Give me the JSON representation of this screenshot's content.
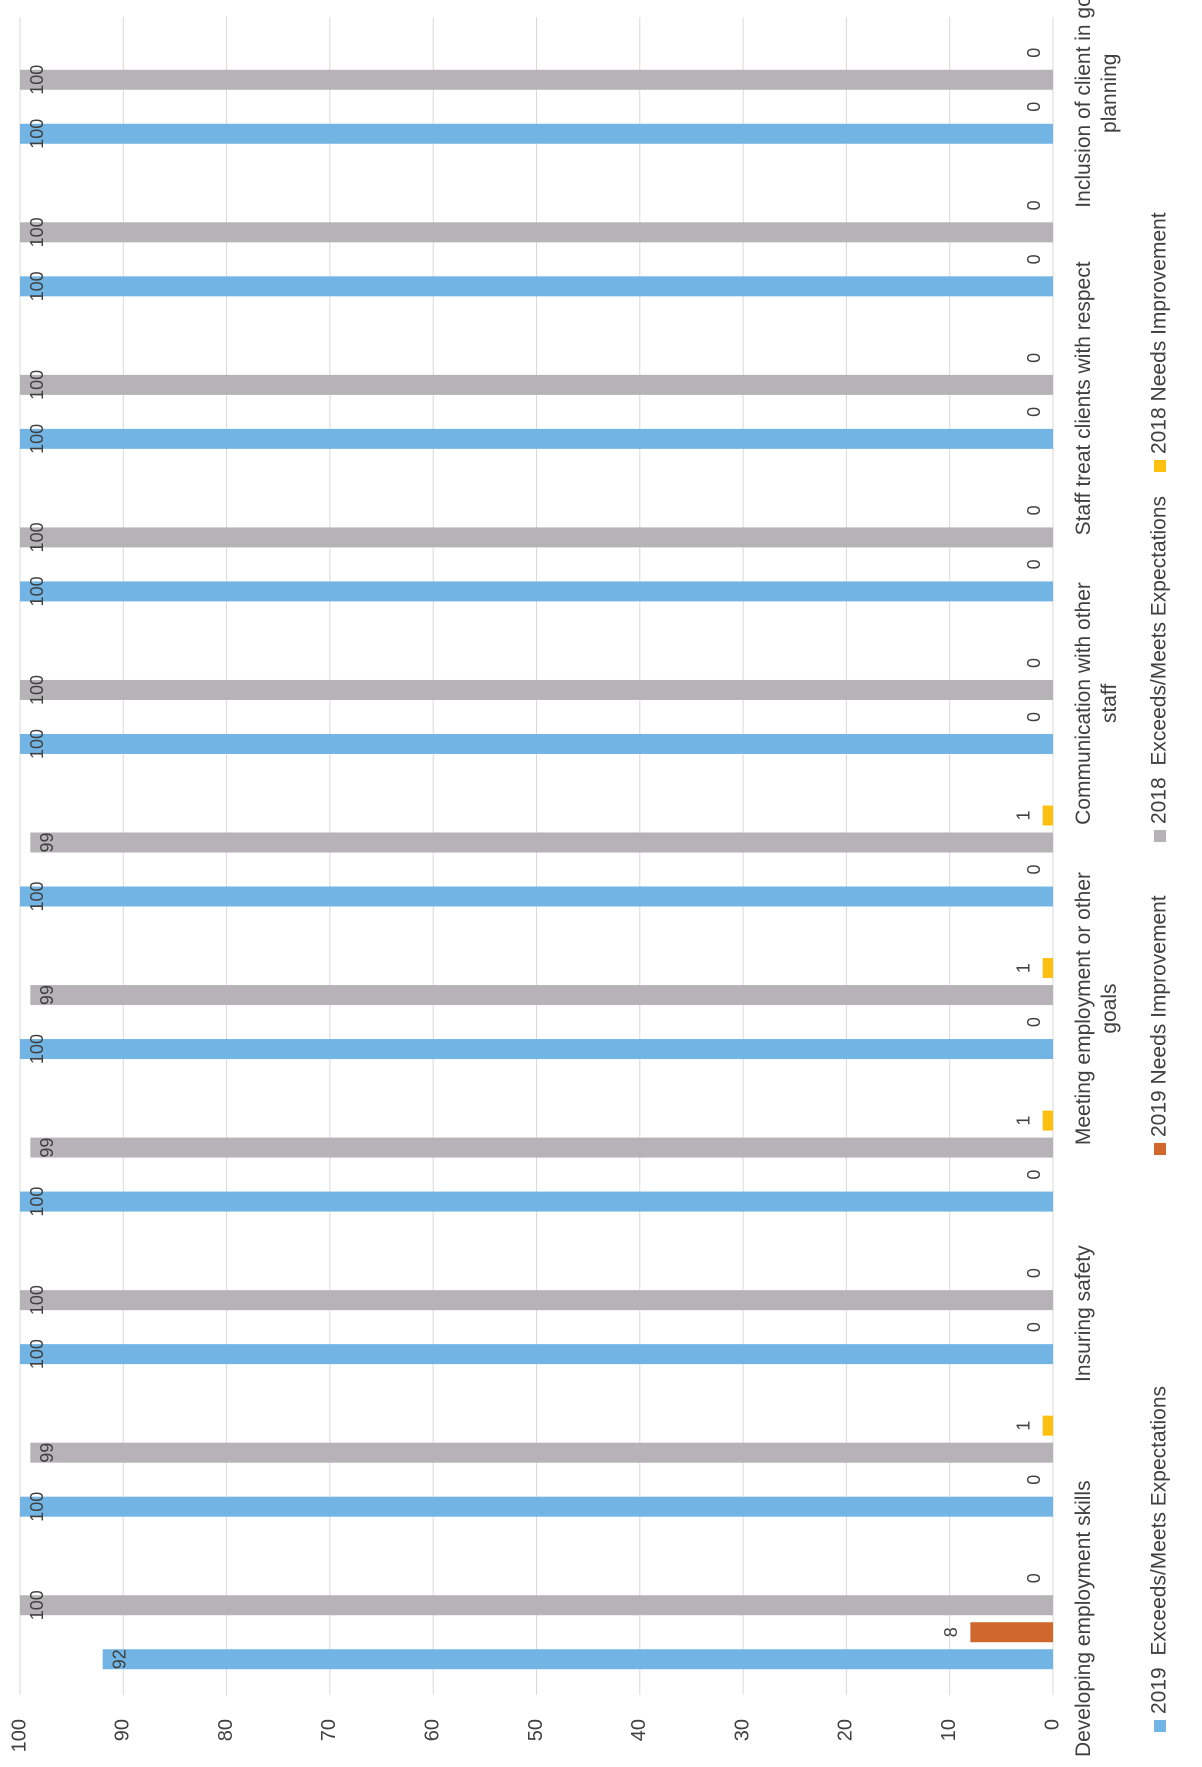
{
  "chart_data": {
    "type": "bar",
    "categories": [
      "Developing employment skills",
      null,
      "Insuring safety",
      null,
      "Meeting employment or other goals",
      null,
      "Communication with other staff",
      null,
      "Staff treat clients with respect",
      null,
      "Inclusion of client in goal planning"
    ],
    "series": [
      {
        "name": "2019  Exceeds/Meets Expectations",
        "color": "#72b5e5",
        "values": [
          92,
          100,
          100,
          100,
          100,
          100,
          100,
          100,
          100,
          100,
          100
        ]
      },
      {
        "name": "2019 Needs Improvement",
        "color": "#d0672c",
        "values": [
          8,
          0,
          0,
          0,
          0,
          0,
          0,
          0,
          0,
          0,
          0
        ]
      },
      {
        "name": "2018  Exceeds/Meets Expectations",
        "color": "#b6b2b7",
        "values": [
          100,
          99,
          100,
          99,
          99,
          99,
          100,
          100,
          100,
          100,
          100
        ]
      },
      {
        "name": "2018 Needs Improvement",
        "color": "#fdc010",
        "values": [
          0,
          1,
          0,
          1,
          1,
          1,
          0,
          0,
          0,
          0,
          0
        ]
      }
    ],
    "ylim": [
      0,
      100
    ],
    "yticks": [
      0,
      10,
      20,
      30,
      40,
      50,
      60,
      70,
      80,
      90,
      100
    ],
    "grid": true,
    "legend": "bottom"
  }
}
